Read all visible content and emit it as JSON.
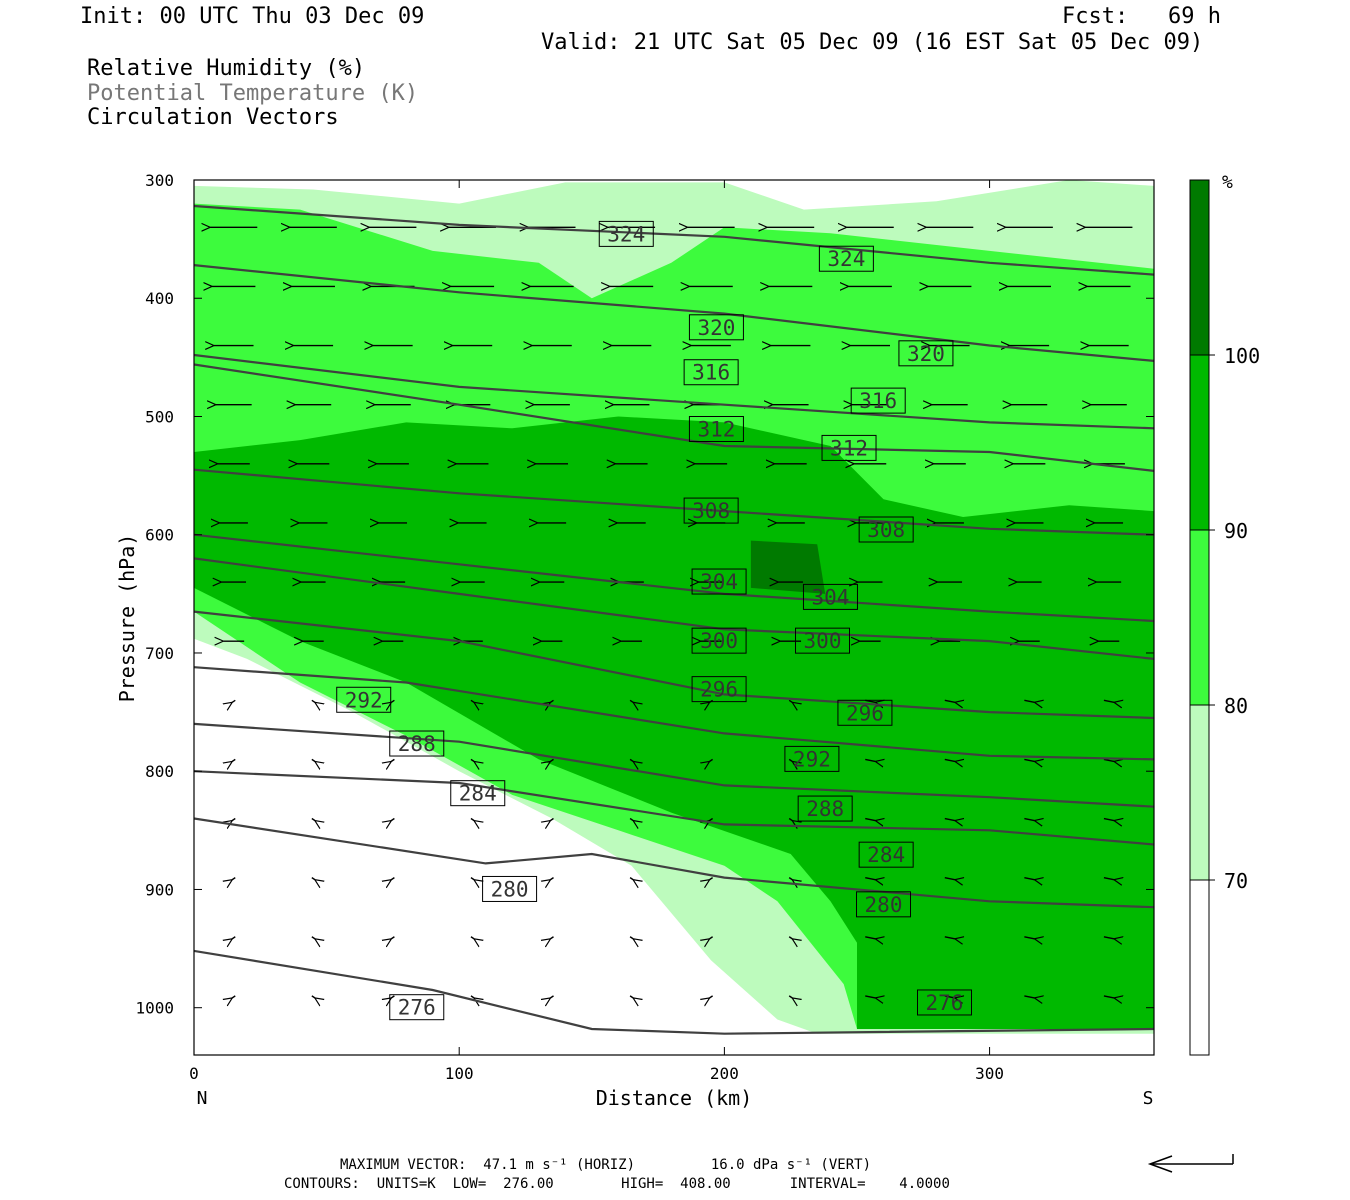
{
  "header": {
    "init": "Init: 00 UTC Thu 03 Dec 09",
    "fcst": "Fcst:   69 h",
    "valid": "Valid: 21 UTC Sat 05 Dec 09 (16 EST Sat 05 Dec 09)",
    "field1": "Relative Humidity (%)",
    "field2": "Potential Temperature (K)",
    "field3": "Circulation Vectors"
  },
  "footer": {
    "max_vector": "MAXIMUM VECTOR:  47.1 m s⁻¹ (HORIZ)         16.0 dPa s⁻¹ (VERT)",
    "contours": "CONTOURS:  UNITS=K  LOW=  276.00        HIGH=  408.00       INTERVAL=    4.0000"
  },
  "colors": {
    "rh70": "#bdfbbd",
    "rh80": "#3dfb3d",
    "rh90": "#00b900",
    "rh100": "#007a00",
    "theta": "#404040"
  },
  "chart_data": {
    "type": "contour",
    "xlabel": "Distance (km)",
    "ylabel": "Pressure (hPa)",
    "xlim": [
      0,
      362
    ],
    "ylim": [
      1040,
      300
    ],
    "x_ticks": [
      0,
      100,
      200,
      300
    ],
    "y_ticks": [
      300,
      400,
      500,
      600,
      700,
      800,
      900,
      1000
    ],
    "x_end_labels": {
      "left": "N",
      "right": "S"
    },
    "colorbar": {
      "unit": "%",
      "levels": [
        70,
        80,
        90,
        100
      ],
      "colors": [
        "#ffffff",
        "#bdfbbd",
        "#3dfb3d",
        "#00b900",
        "#007a00"
      ]
    },
    "rh_fill": {
      "rh70": [
        [
          0,
          305
        ],
        [
          45,
          308
        ],
        [
          100,
          320
        ],
        [
          140,
          302
        ],
        [
          200,
          302
        ],
        [
          230,
          325
        ],
        [
          280,
          318
        ],
        [
          330,
          300
        ],
        [
          362,
          305
        ],
        [
          362,
          1022
        ],
        [
          235,
          1022
        ],
        [
          220,
          1010
        ],
        [
          195,
          960
        ],
        [
          165,
          880
        ],
        [
          135,
          840
        ],
        [
          100,
          800
        ],
        [
          60,
          750
        ],
        [
          20,
          705
        ],
        [
          0,
          688
        ]
      ],
      "rh80": [
        [
          0,
          320
        ],
        [
          40,
          325
        ],
        [
          90,
          360
        ],
        [
          130,
          370
        ],
        [
          150,
          400
        ],
        [
          180,
          370
        ],
        [
          200,
          340
        ],
        [
          240,
          345
        ],
        [
          300,
          360
        ],
        [
          362,
          375
        ],
        [
          362,
          1018
        ],
        [
          250,
          1018
        ],
        [
          245,
          980
        ],
        [
          220,
          910
        ],
        [
          200,
          880
        ],
        [
          160,
          850
        ],
        [
          120,
          820
        ],
        [
          80,
          770
        ],
        [
          40,
          725
        ],
        [
          0,
          665
        ]
      ],
      "rh90": [
        [
          0,
          530
        ],
        [
          40,
          520
        ],
        [
          80,
          505
        ],
        [
          120,
          510
        ],
        [
          160,
          500
        ],
        [
          200,
          505
        ],
        [
          240,
          525
        ],
        [
          260,
          570
        ],
        [
          290,
          585
        ],
        [
          330,
          575
        ],
        [
          362,
          580
        ],
        [
          362,
          1018
        ],
        [
          250,
          1018
        ],
        [
          250,
          945
        ],
        [
          240,
          910
        ],
        [
          225,
          870
        ],
        [
          180,
          835
        ],
        [
          130,
          790
        ],
        [
          80,
          725
        ],
        [
          40,
          690
        ],
        [
          0,
          645
        ]
      ],
      "rh100": [
        [
          210,
          605
        ],
        [
          235,
          608
        ],
        [
          238,
          650
        ],
        [
          210,
          645
        ]
      ]
    },
    "theta_lines": [
      {
        "value": 324,
        "points": [
          [
            0,
            322
          ],
          [
            100,
            338
          ],
          [
            200,
            348
          ],
          [
            300,
            370
          ],
          [
            362,
            380
          ]
        ],
        "label_at": [
          [
            163,
            346
          ],
          [
            246,
            367
          ]
        ]
      },
      {
        "value": 320,
        "points": [
          [
            0,
            372
          ],
          [
            100,
            395
          ],
          [
            200,
            413
          ],
          [
            300,
            440
          ],
          [
            362,
            453
          ]
        ],
        "label_at": [
          [
            197,
            425
          ],
          [
            276,
            447
          ]
        ]
      },
      {
        "value": 316,
        "points": [
          [
            0,
            448
          ],
          [
            100,
            475
          ],
          [
            200,
            490
          ],
          [
            300,
            505
          ],
          [
            362,
            510
          ]
        ],
        "label_at": [
          [
            195,
            463
          ],
          [
            258,
            487
          ]
        ]
      },
      {
        "value": 312,
        "points": [
          [
            0,
            456
          ],
          [
            100,
            490
          ],
          [
            200,
            525
          ],
          [
            300,
            530
          ],
          [
            362,
            546
          ]
        ],
        "label_at": [
          [
            197,
            511
          ],
          [
            247,
            527
          ]
        ]
      },
      {
        "value": 308,
        "points": [
          [
            0,
            545
          ],
          [
            100,
            565
          ],
          [
            200,
            580
          ],
          [
            300,
            595
          ],
          [
            362,
            600
          ]
        ],
        "label_at": [
          [
            195,
            580
          ],
          [
            261,
            596
          ]
        ]
      },
      {
        "value": 304,
        "points": [
          [
            0,
            600
          ],
          [
            100,
            625
          ],
          [
            200,
            650
          ],
          [
            300,
            665
          ],
          [
            362,
            673
          ]
        ],
        "label_at": [
          [
            198,
            640
          ],
          [
            240,
            653
          ]
        ]
      },
      {
        "value": 300,
        "points": [
          [
            0,
            620
          ],
          [
            100,
            650
          ],
          [
            200,
            680
          ],
          [
            300,
            690
          ],
          [
            362,
            705
          ]
        ],
        "label_at": [
          [
            198,
            690
          ],
          [
            237,
            690
          ]
        ]
      },
      {
        "value": 296,
        "points": [
          [
            0,
            665
          ],
          [
            100,
            690
          ],
          [
            200,
            735
          ],
          [
            300,
            750
          ],
          [
            362,
            755
          ]
        ],
        "label_at": [
          [
            198,
            731
          ],
          [
            253,
            751
          ]
        ]
      },
      {
        "value": 292,
        "points": [
          [
            0,
            712
          ],
          [
            80,
            725
          ],
          [
            200,
            768
          ],
          [
            300,
            787
          ],
          [
            362,
            790
          ]
        ],
        "label_at": [
          [
            64,
            740
          ],
          [
            233,
            790
          ]
        ]
      },
      {
        "value": 288,
        "points": [
          [
            0,
            760
          ],
          [
            100,
            775
          ],
          [
            200,
            812
          ],
          [
            300,
            822
          ],
          [
            362,
            830
          ]
        ],
        "label_at": [
          [
            84,
            777
          ],
          [
            238,
            832
          ]
        ]
      },
      {
        "value": 284,
        "points": [
          [
            0,
            800
          ],
          [
            100,
            810
          ],
          [
            200,
            845
          ],
          [
            300,
            850
          ],
          [
            362,
            862
          ]
        ],
        "label_at": [
          [
            107,
            819
          ],
          [
            261,
            871
          ]
        ]
      },
      {
        "value": 280,
        "points": [
          [
            0,
            840
          ],
          [
            110,
            878
          ],
          [
            150,
            870
          ],
          [
            200,
            890
          ],
          [
            300,
            910
          ],
          [
            362,
            915
          ]
        ],
        "label_at": [
          [
            119,
            900
          ],
          [
            260,
            913
          ]
        ]
      },
      {
        "value": 276,
        "points": [
          [
            0,
            952
          ],
          [
            90,
            985
          ],
          [
            150,
            1018
          ],
          [
            200,
            1022
          ],
          [
            362,
            1018
          ]
        ],
        "label_at": [
          [
            84,
            1000
          ],
          [
            283,
            996
          ]
        ]
      }
    ]
  }
}
